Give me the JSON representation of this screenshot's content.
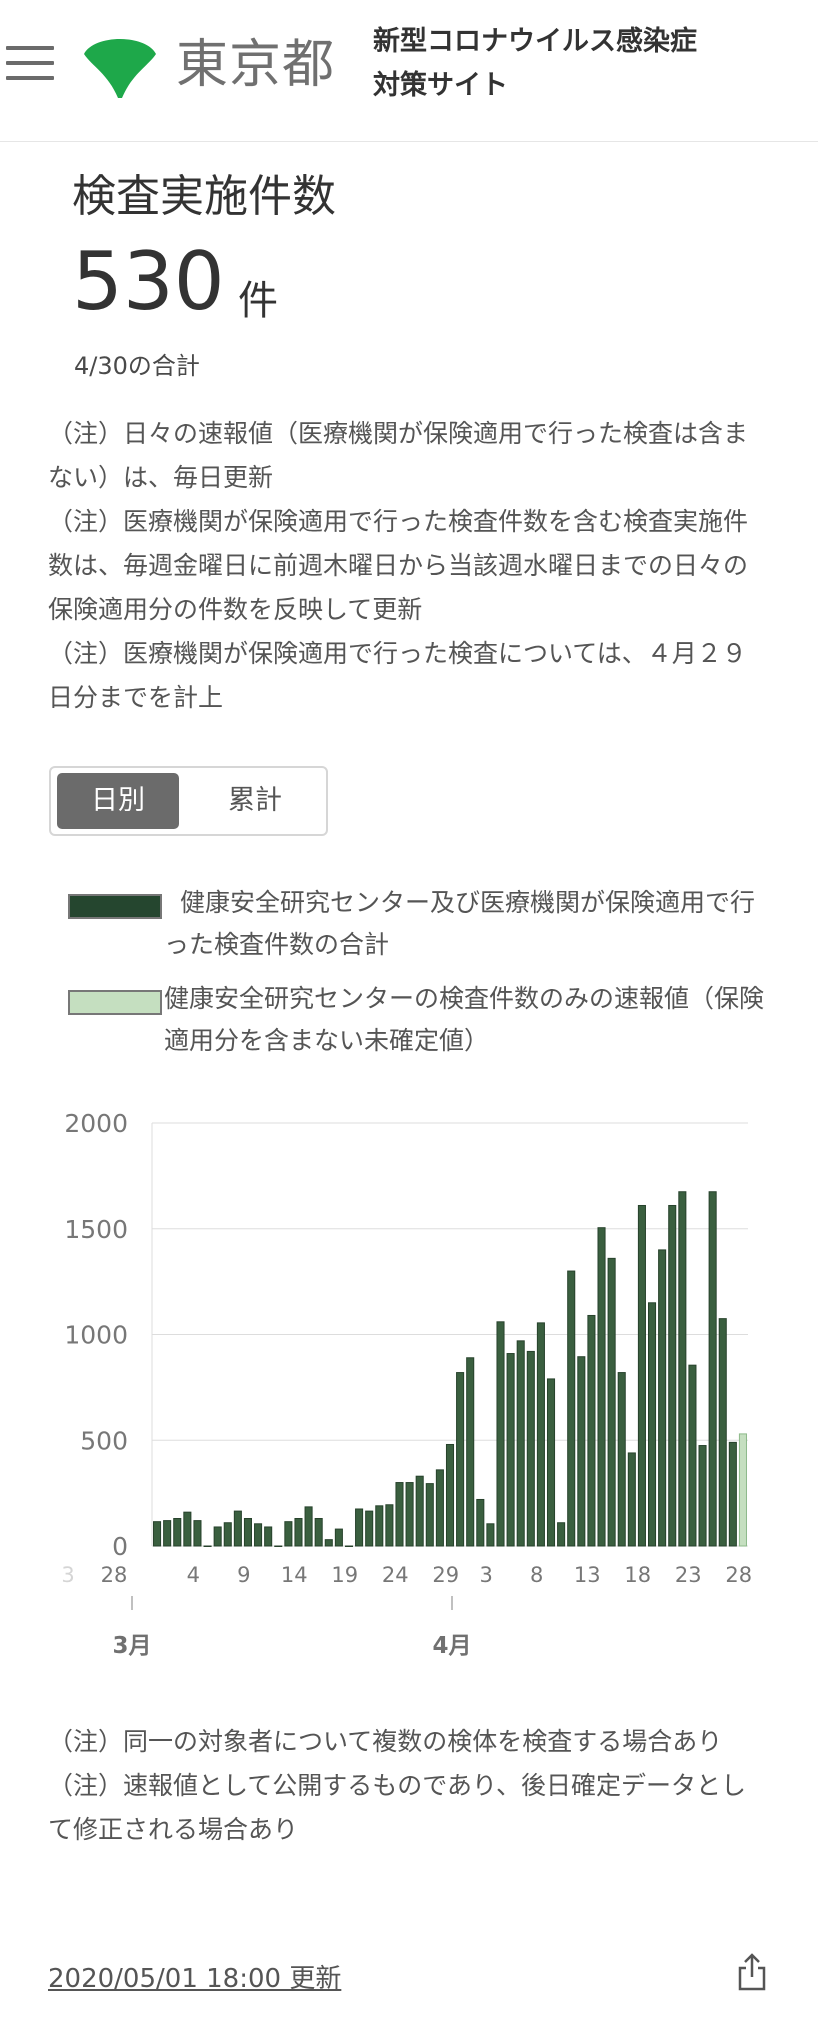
{
  "header": {
    "menu_icon": "hamburger-menu-icon",
    "logo_icon": "ginkgo-leaf-icon",
    "brand": "東京都",
    "site_title_line1": "新型コロナウイルス感染症",
    "site_title_line2": "対策サイト"
  },
  "card": {
    "title": "検査実施件数",
    "value": "530",
    "unit": "件",
    "sum_label": "4/30の合計"
  },
  "notes": [
    "（注）日々の速報値（医療機関が保険適用で行った検査は含まない）は、毎日更新",
    "（注）医療機関が保険適用で行った検査件数を含む検査実施件数は、毎週金曜日に前週木曜日から当該週水曜日までの日々の保険適用分の件数を反映して更新",
    "（注）医療機関が保険適用で行った検査については、４月２９日分までを計上"
  ],
  "toggle": {
    "daily": "日別",
    "cumulative": "累計",
    "selected": "daily"
  },
  "legend": [
    {
      "label": "健康安全研究センター及び医療機関が保険適用で行った検査件数の合計",
      "color": "#25462f"
    },
    {
      "label": "健康安全研究センターの検査件数のみの速報値（保険適用分を含まない未確定値）",
      "color": "#c5dfc0"
    }
  ],
  "chart_data": {
    "type": "bar",
    "title": "",
    "xlabel": "",
    "ylabel": "",
    "ylim": [
      0,
      2000
    ],
    "yticks": [
      0,
      500,
      1000,
      1500,
      2000
    ],
    "grid": true,
    "x_tick_labels": [
      "3",
      "28",
      "4",
      "9",
      "14",
      "19",
      "24",
      "29",
      "3",
      "8",
      "13",
      "18",
      "23",
      "28"
    ],
    "month_labels": [
      "3月",
      "4月"
    ],
    "series": [
      {
        "name": "健康安全研究センター及び医療機関が保険適用で行った検査件数の合計",
        "color": "#3a5f3f",
        "values": [
          115,
          120,
          130,
          160,
          120,
          0,
          90,
          110,
          165,
          130,
          105,
          90,
          0,
          115,
          130,
          185,
          130,
          30,
          80,
          0,
          175,
          165,
          190,
          195,
          300,
          300,
          330,
          295,
          360,
          480,
          820,
          890,
          220,
          105,
          1060,
          910,
          970,
          920,
          1055,
          790,
          110,
          1300,
          895,
          1090,
          1505,
          1360,
          820,
          440,
          1610,
          1150,
          1400,
          1610,
          1675,
          855,
          475,
          1675,
          1075,
          490,
          null
        ]
      },
      {
        "name": "健康安全研究センターの検査件数のみの速報値（保険適用分を含まない未確定値）",
        "color": "#c5dfc0",
        "values": [
          null,
          null,
          null,
          null,
          null,
          null,
          null,
          null,
          null,
          null,
          null,
          null,
          null,
          null,
          null,
          null,
          null,
          null,
          null,
          null,
          null,
          null,
          null,
          null,
          null,
          null,
          null,
          null,
          null,
          null,
          null,
          null,
          null,
          null,
          null,
          null,
          null,
          null,
          null,
          null,
          null,
          null,
          null,
          null,
          null,
          null,
          null,
          null,
          null,
          null,
          null,
          null,
          null,
          null,
          null,
          null,
          null,
          null,
          530
        ]
      }
    ]
  },
  "footnotes": [
    "（注）同一の対象者について複数の検体を検査する場合あり",
    "（注）速報値として公開するものであり、後日確定データとして修正される場合あり"
  ],
  "updated": "2020/05/01 18:00 更新",
  "share_icon": "share-icon"
}
